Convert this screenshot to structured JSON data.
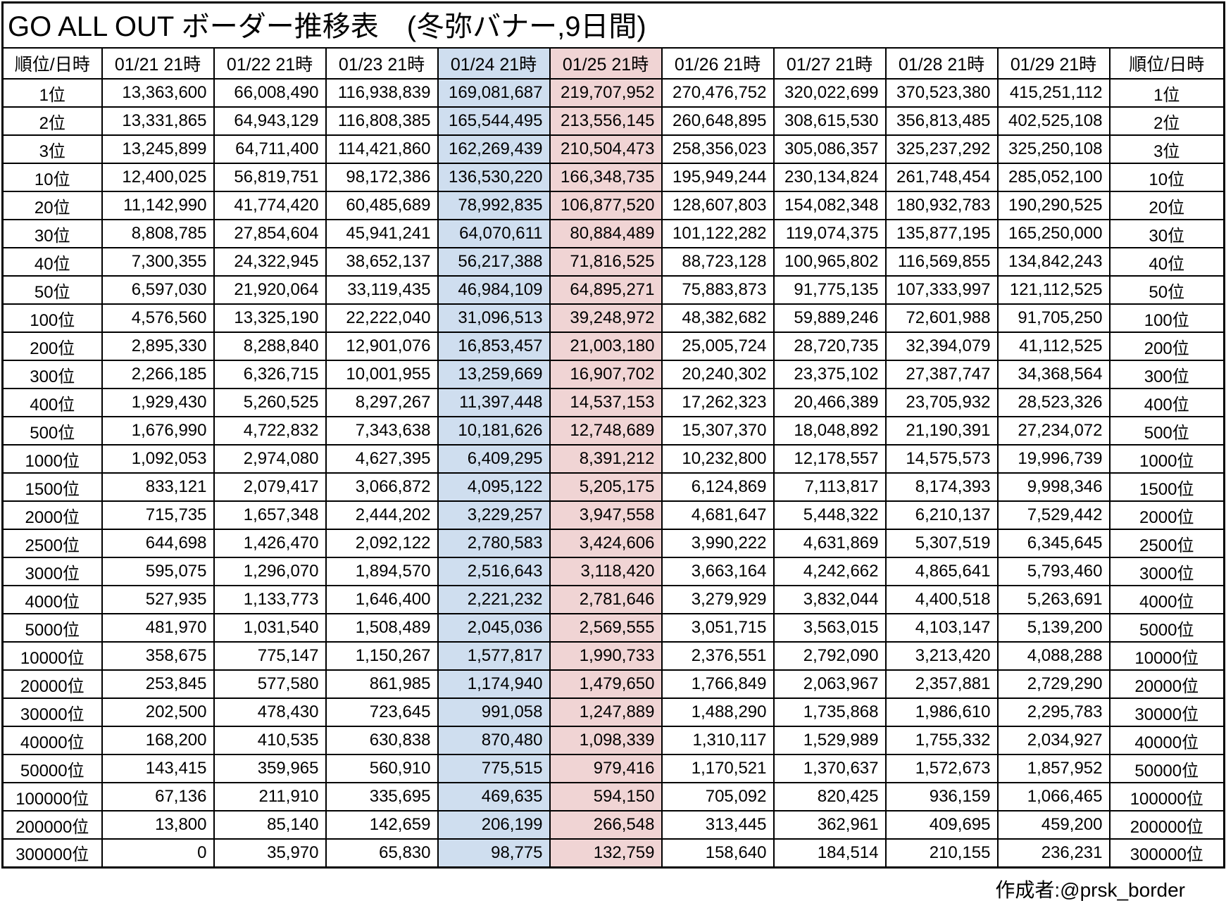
{
  "title": "GO ALL OUT ボーダー推移表　(冬弥バナー,9日間)",
  "footer": {
    "credit": "作成者:@prsk_border"
  },
  "colors": {
    "highlight_blue": "#cfdeef",
    "highlight_pink": "#f0d4d4",
    "grid_border": "#000000",
    "background": "#ffffff"
  },
  "table": {
    "rank_header": "順位/日時",
    "date_headers": [
      "01/21 21時",
      "01/22 21時",
      "01/23 21時",
      "01/24 21時",
      "01/25 21時",
      "01/26 21時",
      "01/27 21時",
      "01/28 21時",
      "01/29 21時"
    ],
    "highlight": {
      "blue": 3,
      "pink": 4
    },
    "rows": [
      {
        "rank": "1位",
        "values": [
          "13,363,600",
          "66,008,490",
          "116,938,839",
          "169,081,687",
          "219,707,952",
          "270,476,752",
          "320,022,699",
          "370,523,380",
          "415,251,112"
        ]
      },
      {
        "rank": "2位",
        "values": [
          "13,331,865",
          "64,943,129",
          "116,808,385",
          "165,544,495",
          "213,556,145",
          "260,648,895",
          "308,615,530",
          "356,813,485",
          "402,525,108"
        ]
      },
      {
        "rank": "3位",
        "values": [
          "13,245,899",
          "64,711,400",
          "114,421,860",
          "162,269,439",
          "210,504,473",
          "258,356,023",
          "305,086,357",
          "325,237,292",
          "325,250,108"
        ]
      },
      {
        "rank": "10位",
        "values": [
          "12,400,025",
          "56,819,751",
          "98,172,386",
          "136,530,220",
          "166,348,735",
          "195,949,244",
          "230,134,824",
          "261,748,454",
          "285,052,100"
        ]
      },
      {
        "rank": "20位",
        "values": [
          "11,142,990",
          "41,774,420",
          "60,485,689",
          "78,992,835",
          "106,877,520",
          "128,607,803",
          "154,082,348",
          "180,932,783",
          "190,290,525"
        ]
      },
      {
        "rank": "30位",
        "values": [
          "8,808,785",
          "27,854,604",
          "45,941,241",
          "64,070,611",
          "80,884,489",
          "101,122,282",
          "119,074,375",
          "135,877,195",
          "165,250,000"
        ]
      },
      {
        "rank": "40位",
        "values": [
          "7,300,355",
          "24,322,945",
          "38,652,137",
          "56,217,388",
          "71,816,525",
          "88,723,128",
          "100,965,802",
          "116,569,855",
          "134,842,243"
        ]
      },
      {
        "rank": "50位",
        "values": [
          "6,597,030",
          "21,920,064",
          "33,119,435",
          "46,984,109",
          "64,895,271",
          "75,883,873",
          "91,775,135",
          "107,333,997",
          "121,112,525"
        ]
      },
      {
        "rank": "100位",
        "values": [
          "4,576,560",
          "13,325,190",
          "22,222,040",
          "31,096,513",
          "39,248,972",
          "48,382,682",
          "59,889,246",
          "72,601,988",
          "91,705,250"
        ]
      },
      {
        "rank": "200位",
        "values": [
          "2,895,330",
          "8,288,840",
          "12,901,076",
          "16,853,457",
          "21,003,180",
          "25,005,724",
          "28,720,735",
          "32,394,079",
          "41,112,525"
        ]
      },
      {
        "rank": "300位",
        "values": [
          "2,266,185",
          "6,326,715",
          "10,001,955",
          "13,259,669",
          "16,907,702",
          "20,240,302",
          "23,375,102",
          "27,387,747",
          "34,368,564"
        ]
      },
      {
        "rank": "400位",
        "values": [
          "1,929,430",
          "5,260,525",
          "8,297,267",
          "11,397,448",
          "14,537,153",
          "17,262,323",
          "20,466,389",
          "23,705,932",
          "28,523,326"
        ]
      },
      {
        "rank": "500位",
        "values": [
          "1,676,990",
          "4,722,832",
          "7,343,638",
          "10,181,626",
          "12,748,689",
          "15,307,370",
          "18,048,892",
          "21,190,391",
          "27,234,072"
        ]
      },
      {
        "rank": "1000位",
        "values": [
          "1,092,053",
          "2,974,080",
          "4,627,395",
          "6,409,295",
          "8,391,212",
          "10,232,800",
          "12,178,557",
          "14,575,573",
          "19,996,739"
        ]
      },
      {
        "rank": "1500位",
        "values": [
          "833,121",
          "2,079,417",
          "3,066,872",
          "4,095,122",
          "5,205,175",
          "6,124,869",
          "7,113,817",
          "8,174,393",
          "9,998,346"
        ]
      },
      {
        "rank": "2000位",
        "values": [
          "715,735",
          "1,657,348",
          "2,444,202",
          "3,229,257",
          "3,947,558",
          "4,681,647",
          "5,448,322",
          "6,210,137",
          "7,529,442"
        ]
      },
      {
        "rank": "2500位",
        "values": [
          "644,698",
          "1,426,470",
          "2,092,122",
          "2,780,583",
          "3,424,606",
          "3,990,222",
          "4,631,869",
          "5,307,519",
          "6,345,645"
        ]
      },
      {
        "rank": "3000位",
        "values": [
          "595,075",
          "1,296,070",
          "1,894,570",
          "2,516,643",
          "3,118,420",
          "3,663,164",
          "4,242,662",
          "4,865,641",
          "5,793,460"
        ]
      },
      {
        "rank": "4000位",
        "values": [
          "527,935",
          "1,133,773",
          "1,646,400",
          "2,221,232",
          "2,781,646",
          "3,279,929",
          "3,832,044",
          "4,400,518",
          "5,263,691"
        ]
      },
      {
        "rank": "5000位",
        "values": [
          "481,970",
          "1,031,540",
          "1,508,489",
          "2,045,036",
          "2,569,555",
          "3,051,715",
          "3,563,015",
          "4,103,147",
          "5,139,200"
        ]
      },
      {
        "rank": "10000位",
        "values": [
          "358,675",
          "775,147",
          "1,150,267",
          "1,577,817",
          "1,990,733",
          "2,376,551",
          "2,792,090",
          "3,213,420",
          "4,088,288"
        ]
      },
      {
        "rank": "20000位",
        "values": [
          "253,845",
          "577,580",
          "861,985",
          "1,174,940",
          "1,479,650",
          "1,766,849",
          "2,063,967",
          "2,357,881",
          "2,729,290"
        ]
      },
      {
        "rank": "30000位",
        "values": [
          "202,500",
          "478,430",
          "723,645",
          "991,058",
          "1,247,889",
          "1,488,290",
          "1,735,868",
          "1,986,610",
          "2,295,783"
        ]
      },
      {
        "rank": "40000位",
        "values": [
          "168,200",
          "410,535",
          "630,838",
          "870,480",
          "1,098,339",
          "1,310,117",
          "1,529,989",
          "1,755,332",
          "2,034,927"
        ]
      },
      {
        "rank": "50000位",
        "values": [
          "143,415",
          "359,965",
          "560,910",
          "775,515",
          "979,416",
          "1,170,521",
          "1,370,637",
          "1,572,673",
          "1,857,952"
        ]
      },
      {
        "rank": "100000位",
        "values": [
          "67,136",
          "211,910",
          "335,695",
          "469,635",
          "594,150",
          "705,092",
          "820,425",
          "936,159",
          "1,066,465"
        ]
      },
      {
        "rank": "200000位",
        "values": [
          "13,800",
          "85,140",
          "142,659",
          "206,199",
          "266,548",
          "313,445",
          "362,961",
          "409,695",
          "459,200"
        ]
      },
      {
        "rank": "300000位",
        "values": [
          "0",
          "35,970",
          "65,830",
          "98,775",
          "132,759",
          "158,640",
          "184,514",
          "210,155",
          "236,231"
        ]
      }
    ]
  }
}
